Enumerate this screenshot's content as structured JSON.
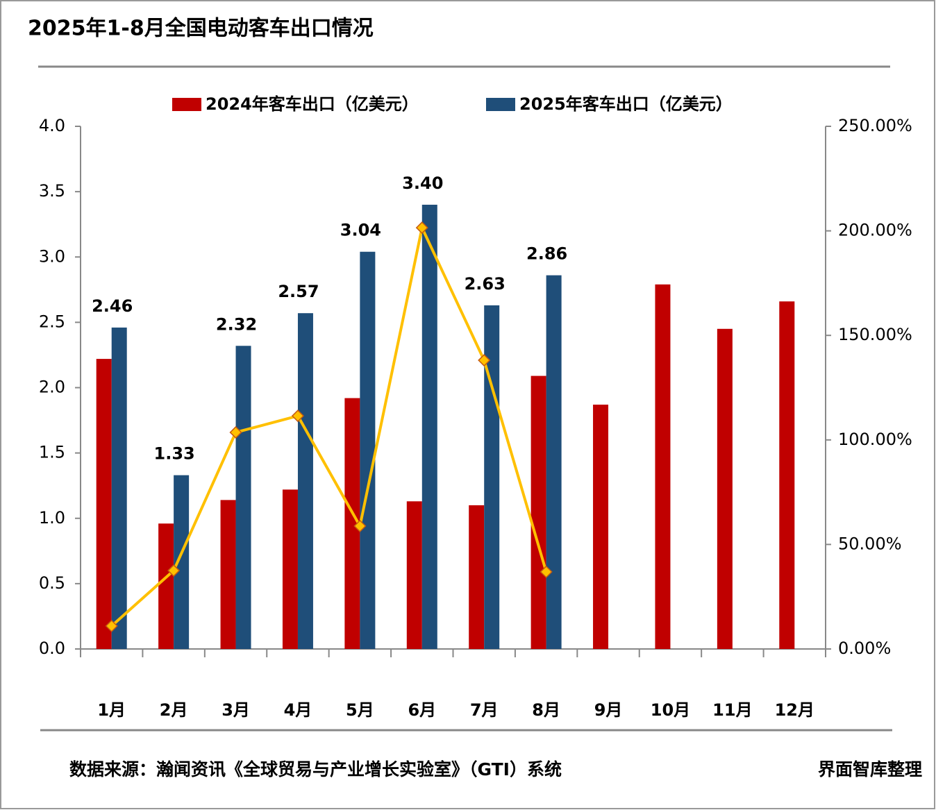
{
  "title": "2025年1-8月全国电动客车出口情况",
  "source": "数据来源：瀚闻资讯《全球贸易与产业增长实验室》（GTI）系统",
  "credit": "界面智库整理",
  "chart_data": {
    "type": "bar",
    "categories": [
      "1月",
      "2月",
      "3月",
      "4月",
      "5月",
      "6月",
      "7月",
      "8月",
      "9月",
      "10月",
      "11月",
      "12月"
    ],
    "series": [
      {
        "name": "2024年客车出口（亿美元）",
        "color": "#C00000",
        "values": [
          2.22,
          0.96,
          1.14,
          1.22,
          1.92,
          1.13,
          1.1,
          2.09,
          1.87,
          2.79,
          2.45,
          2.66
        ]
      },
      {
        "name": "2025年客车出口（亿美元）",
        "color": "#1F4E79",
        "values": [
          2.46,
          1.33,
          2.32,
          2.57,
          3.04,
          3.4,
          2.63,
          2.86,
          null,
          null,
          null,
          null
        ],
        "value_labels": [
          "2.46",
          "1.33",
          "2.32",
          "2.57",
          "3.04",
          "3.40",
          "2.63",
          "2.86",
          null,
          null,
          null,
          null
        ]
      },
      {
        "type": "line",
        "axis": "y2",
        "color": "#FFC000",
        "values": [
          11,
          37.5,
          103.6,
          111.5,
          58.8,
          201.5,
          138.1,
          36.9,
          null,
          null,
          null,
          null
        ]
      }
    ],
    "ylim": [
      0,
      4
    ],
    "yticks": [
      {
        "value": 0,
        "label": "0.0"
      },
      0.5,
      {
        "value": 1,
        "label": "1.0"
      },
      1.5,
      {
        "value": 2,
        "label": "2.0"
      },
      2.5,
      {
        "value": 3,
        "label": "3.0"
      },
      3.5,
      {
        "value": 4,
        "label": "4.0"
      }
    ],
    "y2lim": [
      0,
      250
    ],
    "y2ticks": [
      {
        "value": 0,
        "label": "0.00%"
      },
      {
        "value": 50,
        "label": "50.00%"
      },
      {
        "value": 100,
        "label": "100.00%"
      },
      {
        "value": 150,
        "label": "150.00%"
      },
      {
        "value": 200,
        "label": "200.00%"
      },
      {
        "value": 250,
        "label": "250.00%"
      }
    ],
    "legend": "top"
  }
}
